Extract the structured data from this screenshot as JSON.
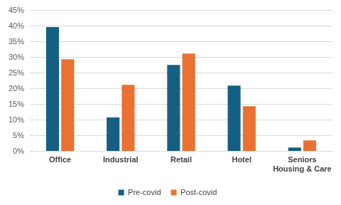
{
  "chart_data": {
    "type": "bar",
    "categories": [
      "Office",
      "Industrial",
      "Retail",
      "Hotel",
      "Seniors Housing & Care"
    ],
    "series": [
      {
        "name": "Pre-covid",
        "color": "#156082",
        "values": [
          39.7,
          10.8,
          27.6,
          21.0,
          1.2
        ]
      },
      {
        "name": "Post-covid",
        "color": "#e97132",
        "values": [
          29.4,
          21.2,
          31.2,
          14.4,
          3.5
        ]
      }
    ],
    "ylim": [
      0,
      45
    ],
    "yticks": [
      {
        "value": 0,
        "label": "0%"
      },
      {
        "value": 5,
        "label": "5%"
      },
      {
        "value": 10,
        "label": "10%"
      },
      {
        "value": 15,
        "label": "15%"
      },
      {
        "value": 20,
        "label": "20%"
      },
      {
        "value": 25,
        "label": "25%"
      },
      {
        "value": 30,
        "label": "30%"
      },
      {
        "value": 35,
        "label": "35%"
      },
      {
        "value": 40,
        "label": "40%"
      },
      {
        "value": 45,
        "label": "45%"
      }
    ],
    "grid": true,
    "legend": "bottom"
  }
}
